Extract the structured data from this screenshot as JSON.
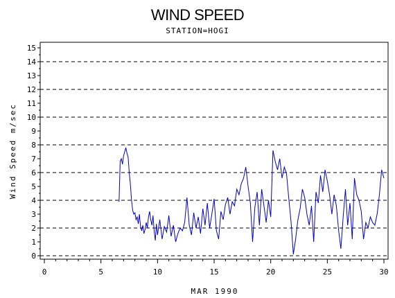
{
  "chart_data": {
    "type": "line",
    "title": "WIND SPEED",
    "subtitle": "STATION=HOGI",
    "xlabel": "MAR 1990",
    "ylabel": "Wind Speed m/sec",
    "xlim": [
      0,
      30
    ],
    "ylim": [
      0,
      15
    ],
    "x_ticks": [
      0,
      5,
      10,
      15,
      20,
      25,
      30
    ],
    "y_ticks": [
      0,
      1,
      2,
      3,
      4,
      5,
      6,
      7,
      8,
      9,
      10,
      11,
      12,
      13,
      14,
      15
    ],
    "grid": {
      "y_dashed_at": [
        0,
        2,
        4,
        6,
        8,
        10,
        12,
        14
      ]
    },
    "series_color": "#0000cc",
    "series": [
      {
        "x": [
          6.6,
          6.7,
          6.8,
          6.9,
          7.0,
          7.1,
          7.2,
          7.3,
          7.4,
          7.5,
          7.6,
          7.7,
          7.8,
          7.9,
          8.0,
          8.1,
          8.2,
          8.3,
          8.4,
          8.5,
          8.6,
          8.7,
          8.8,
          8.9,
          9.0,
          9.1,
          9.2,
          9.3,
          9.4,
          9.5,
          9.6,
          9.7,
          9.8,
          9.9,
          10.0,
          10.2,
          10.4,
          10.6,
          10.8,
          11.0,
          11.2,
          11.4,
          11.6,
          11.8,
          12.0,
          12.2,
          12.4,
          12.6,
          12.8,
          13.0,
          13.2,
          13.4,
          13.6,
          13.8,
          14.0,
          14.2,
          14.4,
          14.6,
          14.8,
          15.0,
          15.2,
          15.4,
          15.6,
          15.8,
          16.0,
          16.2,
          16.4,
          16.6,
          16.8,
          17.0,
          17.2,
          17.4,
          17.6,
          17.8,
          18.0,
          18.2,
          18.4,
          18.6,
          18.8,
          19.0,
          19.2,
          19.4,
          19.6,
          19.8,
          20.0,
          20.2,
          20.4,
          20.6,
          20.8,
          21.0,
          21.2,
          21.4,
          21.6,
          21.8,
          22.0,
          22.2,
          22.4,
          22.6,
          22.8,
          23.0,
          23.2,
          23.4,
          23.6,
          23.8,
          24.0,
          24.2,
          24.4,
          24.6,
          24.8,
          25.0,
          25.2,
          25.4,
          25.6,
          25.8,
          26.0,
          26.2,
          26.4,
          26.6,
          26.8,
          27.0,
          27.2,
          27.4,
          27.6,
          27.8,
          28.0,
          28.2,
          28.4,
          28.6,
          28.8,
          29.0,
          29.2,
          29.4,
          29.6,
          29.8,
          30.0
        ],
        "y": [
          3.9,
          6.8,
          7.0,
          6.6,
          7.2,
          7.5,
          7.8,
          7.4,
          7.1,
          6.0,
          5.2,
          4.0,
          3.3,
          3.0,
          3.1,
          2.6,
          2.8,
          2.3,
          3.0,
          2.1,
          1.8,
          2.2,
          1.6,
          1.9,
          2.4,
          2.0,
          2.8,
          3.2,
          2.6,
          2.2,
          2.9,
          1.8,
          1.1,
          2.3,
          1.5,
          2.6,
          1.2,
          2.1,
          1.7,
          2.9,
          1.4,
          2.2,
          1.0,
          1.6,
          2.0,
          1.8,
          2.4,
          4.2,
          2.2,
          1.5,
          3.1,
          2.0,
          2.8,
          1.6,
          3.4,
          2.2,
          3.8,
          2.0,
          3.0,
          4.1,
          1.8,
          1.2,
          3.2,
          2.6,
          3.7,
          4.2,
          3.0,
          3.9,
          3.6,
          4.8,
          4.4,
          5.2,
          5.6,
          6.4,
          5.0,
          3.8,
          1.0,
          3.5,
          4.6,
          2.2,
          4.8,
          3.6,
          2.4,
          4.0,
          2.8,
          7.6,
          6.8,
          6.2,
          7.0,
          5.6,
          6.4,
          5.9,
          4.1,
          2.4,
          0.1,
          1.2,
          2.6,
          3.4,
          4.8,
          4.2,
          3.0,
          2.2,
          3.6,
          1.0,
          4.6,
          3.8,
          5.8,
          4.6,
          6.2,
          5.4,
          4.4,
          3.0,
          4.4,
          3.6,
          1.8,
          0.5,
          2.8,
          4.8,
          2.2,
          3.8,
          1.2,
          5.6,
          4.4,
          4.0,
          3.2,
          1.2,
          2.4,
          2.0,
          2.8,
          2.4,
          2.2,
          3.0,
          4.4,
          6.2,
          5.6
        ]
      }
    ]
  }
}
